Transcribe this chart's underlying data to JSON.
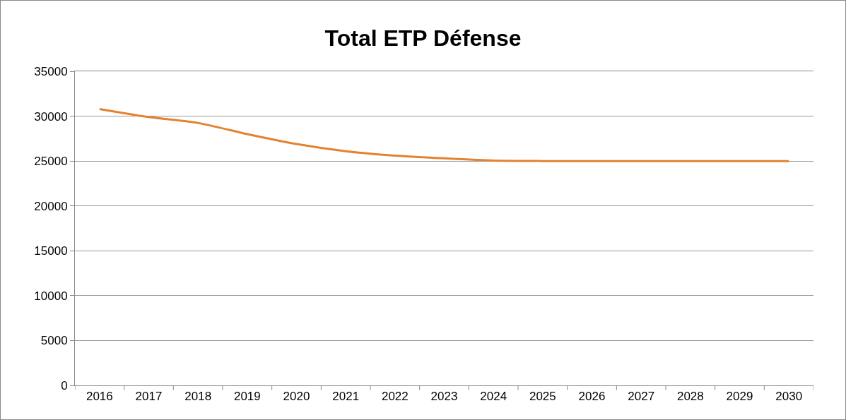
{
  "chart_data": {
    "type": "line",
    "title": "Total ETP Défense",
    "categories": [
      "2016",
      "2017",
      "2018",
      "2019",
      "2020",
      "2021",
      "2022",
      "2023",
      "2024",
      "2025",
      "2026",
      "2027",
      "2028",
      "2029",
      "2030"
    ],
    "series": [
      {
        "color": "#e3822f",
        "values": [
          30800,
          29900,
          29250,
          28000,
          26900,
          26100,
          25600,
          25300,
          25050,
          25000,
          25000,
          25000,
          25000,
          25000,
          25000
        ]
      }
    ],
    "ylim": [
      0,
      35000
    ],
    "yticks": [
      0,
      5000,
      10000,
      15000,
      20000,
      25000,
      30000,
      35000
    ],
    "grid": "y",
    "marker": "none",
    "line_style": "solid"
  }
}
